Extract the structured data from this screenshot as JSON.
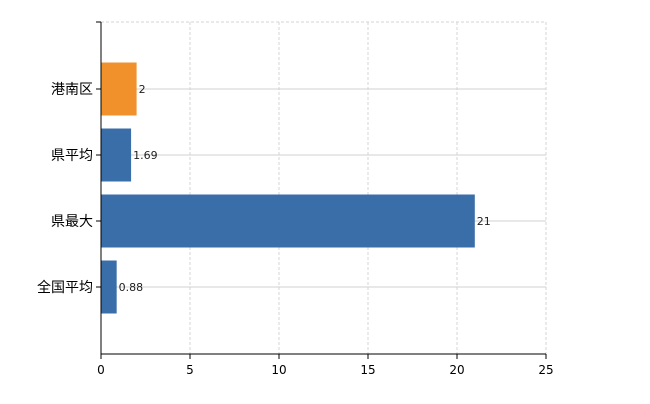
{
  "chart_data": {
    "type": "bar",
    "orientation": "horizontal",
    "categories": [
      "港南区",
      "県平均",
      "県最大",
      "全国平均"
    ],
    "values": [
      2,
      1.69,
      21,
      0.88
    ],
    "data_labels": [
      "2",
      "1.69",
      "21",
      "0.88"
    ],
    "bar_colors": [
      "#f0912c",
      "#3a6ea8",
      "#3a6ea8",
      "#3a6ea8"
    ],
    "xlim": [
      0,
      25
    ],
    "x_ticks": [
      0,
      5,
      10,
      15,
      20,
      25
    ],
    "grid": true,
    "title": "",
    "xlabel": "",
    "ylabel": ""
  }
}
